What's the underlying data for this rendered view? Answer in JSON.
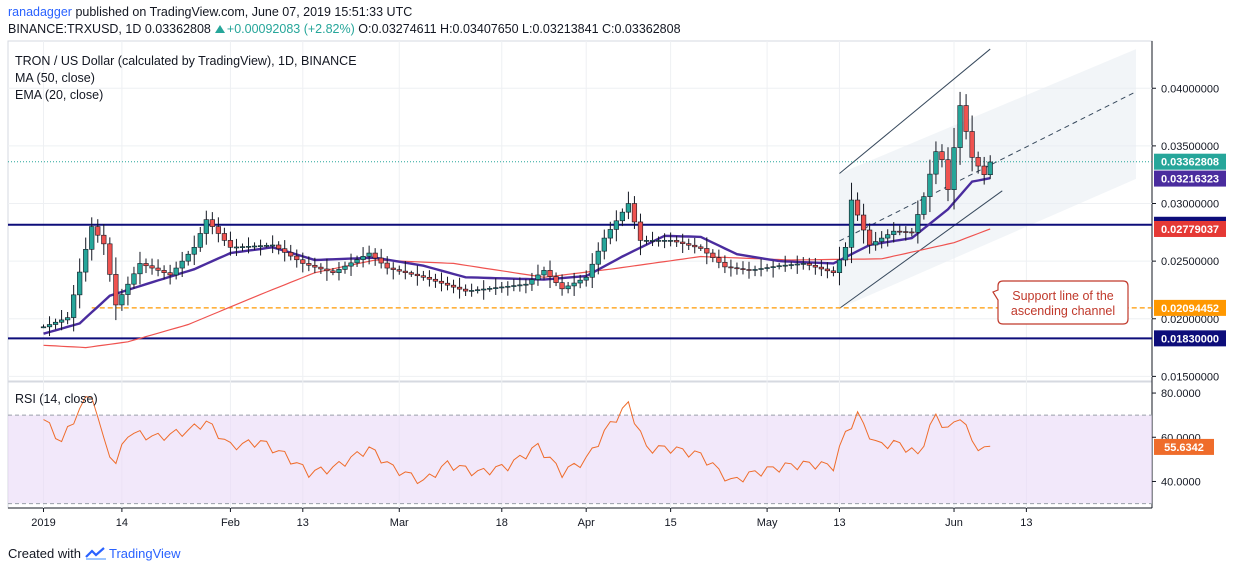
{
  "header": {
    "user": "ranadagger",
    "published_text": "published on TradingView.com, June 07, 2019 15:51:33 UTC",
    "symbol_line_prefix": "BINANCE:TRXUSD, 1D",
    "last_price": "0.03362808",
    "change": "+0.00092083 (+2.82%)",
    "ohlc": "O:0.03274611 H:0.03407650 L:0.03213841 C:0.03362808"
  },
  "legend": {
    "title": "TRON / US Dollar (calculated by TradingView), 1D, BINANCE",
    "ma": "MA (50, close)",
    "ema": "EMA (20, close)",
    "rsi": "RSI (14, close)"
  },
  "annotation": {
    "line1": "Support line of the",
    "line2": "ascending channel"
  },
  "footer": {
    "created_with": "Created with",
    "brand": "TradingView"
  },
  "colors": {
    "up": "#26a69a",
    "down": "#ef5350",
    "ma": "#ef5350",
    "ema": "#4a2c9e",
    "hline": "#0d0d7a",
    "support_dash": "#ff9800",
    "channel": "#37495d",
    "rsi_line": "#ef6c2b",
    "rsi_band": "#e9d9f6",
    "annotation": "#c0392b",
    "label_red": "#e53935"
  },
  "chart_data": {
    "type": "candlestick",
    "title": "TRON / US Dollar (calculated by TradingView), 1D, BINANCE",
    "price_axis": {
      "ticks": [
        "0.04000000",
        "0.03500000",
        "0.03000000",
        "0.02500000",
        "0.02000000",
        "0.01500000"
      ],
      "ylim": [
        0.0146,
        0.0441
      ]
    },
    "time_axis": {
      "ticks": [
        "2019",
        "14",
        "Feb",
        "13",
        "Mar",
        "18",
        "Apr",
        "15",
        "May",
        "13",
        "Jun",
        "13"
      ],
      "x_dates": [
        "2019-01-01",
        "2019-01-14",
        "2019-02-01",
        "2019-02-13",
        "2019-03-01",
        "2019-03-18",
        "2019-04-01",
        "2019-04-15",
        "2019-05-01",
        "2019-05-13",
        "2019-06-01",
        "2019-06-13"
      ]
    },
    "price_labels": [
      {
        "value": 0.03362808,
        "text": "0.03362808",
        "color": "#26a69a"
      },
      {
        "value": 0.03216323,
        "text": "0.03216323",
        "color": "#4a2c9e"
      },
      {
        "value": 0.02815521,
        "text": "0.02815521",
        "color": "#0d0d7a"
      },
      {
        "value": 0.02779037,
        "text": "0.02779037",
        "color": "#e53935"
      },
      {
        "value": 0.02094452,
        "text": "0.02094452",
        "color": "#ff9800"
      },
      {
        "value": 0.0183,
        "text": "0.01830000",
        "color": "#0d0d7a"
      }
    ],
    "horizontal_lines": [
      {
        "value": 0.02815521,
        "style": "solid"
      },
      {
        "value": 0.0183,
        "style": "solid"
      },
      {
        "value": 0.02094452,
        "style": "dashed",
        "start": "2019-01-09"
      }
    ],
    "channel": {
      "lower": [
        [
          "2019-05-13",
          0.0209
        ],
        [
          "2019-06-09",
          0.0311
        ]
      ],
      "upper": [
        [
          "2019-05-13",
          0.0326
        ],
        [
          "2019-06-07",
          0.0434
        ]
      ]
    },
    "close_anchors": [
      [
        "2019-01-01",
        0.0193
      ],
      [
        "2019-01-05",
        0.0201
      ],
      [
        "2019-01-09",
        0.028
      ],
      [
        "2019-01-11",
        0.0265
      ],
      [
        "2019-01-13",
        0.0212
      ],
      [
        "2019-01-17",
        0.0248
      ],
      [
        "2019-01-22",
        0.0238
      ],
      [
        "2019-01-26",
        0.0262
      ],
      [
        "2019-01-28",
        0.0286
      ],
      [
        "2019-02-01",
        0.0262
      ],
      [
        "2019-02-08",
        0.0264
      ],
      [
        "2019-02-13",
        0.0248
      ],
      [
        "2019-02-18",
        0.024
      ],
      [
        "2019-02-24",
        0.0257
      ],
      [
        "2019-02-27",
        0.0244
      ],
      [
        "2019-03-05",
        0.0236
      ],
      [
        "2019-03-12",
        0.0224
      ],
      [
        "2019-03-22",
        0.023
      ],
      [
        "2019-03-25",
        0.0242
      ],
      [
        "2019-03-28",
        0.0226
      ],
      [
        "2019-04-01",
        0.0236
      ],
      [
        "2019-04-04",
        0.027
      ],
      [
        "2019-04-08",
        0.03
      ],
      [
        "2019-04-10",
        0.0268
      ],
      [
        "2019-04-15",
        0.0268
      ],
      [
        "2019-04-20",
        0.0261
      ],
      [
        "2019-04-24",
        0.0245
      ],
      [
        "2019-04-28",
        0.0242
      ],
      [
        "2019-05-03",
        0.0246
      ],
      [
        "2019-05-07",
        0.0248
      ],
      [
        "2019-05-12",
        0.024
      ],
      [
        "2019-05-14",
        0.0262
      ],
      [
        "2019-05-15",
        0.0303
      ],
      [
        "2019-05-18",
        0.0264
      ],
      [
        "2019-05-22",
        0.0276
      ],
      [
        "2019-05-25",
        0.0275
      ],
      [
        "2019-05-27",
        0.0306
      ],
      [
        "2019-05-29",
        0.0345
      ],
      [
        "2019-05-30",
        0.0338
      ],
      [
        "2019-05-31",
        0.0312
      ],
      [
        "2019-06-02",
        0.0385
      ],
      [
        "2019-06-04",
        0.034
      ],
      [
        "2019-06-06",
        0.0325
      ],
      [
        "2019-06-07",
        0.0336
      ]
    ],
    "ma50_anchors": [
      [
        "2019-01-01",
        0.0177
      ],
      [
        "2019-01-08",
        0.0175
      ],
      [
        "2019-01-15",
        0.018
      ],
      [
        "2019-01-25",
        0.0195
      ],
      [
        "2019-02-05",
        0.0219
      ],
      [
        "2019-02-15",
        0.024
      ],
      [
        "2019-02-25",
        0.0251
      ],
      [
        "2019-03-10",
        0.0248
      ],
      [
        "2019-03-25",
        0.0236
      ],
      [
        "2019-04-05",
        0.0243
      ],
      [
        "2019-04-20",
        0.0254
      ],
      [
        "2019-05-05",
        0.0251
      ],
      [
        "2019-05-20",
        0.0252
      ],
      [
        "2019-06-01",
        0.0266
      ],
      [
        "2019-06-07",
        0.0278
      ]
    ],
    "ema20_anchors": [
      [
        "2019-01-01",
        0.0187
      ],
      [
        "2019-01-07",
        0.0196
      ],
      [
        "2019-01-12",
        0.022
      ],
      [
        "2019-01-18",
        0.023
      ],
      [
        "2019-01-26",
        0.0243
      ],
      [
        "2019-02-01",
        0.0257
      ],
      [
        "2019-02-08",
        0.0262
      ],
      [
        "2019-02-15",
        0.0251
      ],
      [
        "2019-02-25",
        0.0253
      ],
      [
        "2019-03-05",
        0.0246
      ],
      [
        "2019-03-12",
        0.0236
      ],
      [
        "2019-03-25",
        0.0234
      ],
      [
        "2019-04-01",
        0.0237
      ],
      [
        "2019-04-07",
        0.0254
      ],
      [
        "2019-04-14",
        0.0272
      ],
      [
        "2019-04-20",
        0.0271
      ],
      [
        "2019-04-26",
        0.0256
      ],
      [
        "2019-05-03",
        0.025
      ],
      [
        "2019-05-12",
        0.0248
      ],
      [
        "2019-05-18",
        0.0264
      ],
      [
        "2019-05-25",
        0.027
      ],
      [
        "2019-05-31",
        0.0295
      ],
      [
        "2019-06-04",
        0.0319
      ],
      [
        "2019-06-07",
        0.0322
      ]
    ],
    "rsi": {
      "axis_ticks": [
        "80.0000",
        "60.0000",
        "40.0000"
      ],
      "ylim": [
        28,
        85
      ],
      "band": [
        30,
        70
      ],
      "last_label": "55.6342",
      "last_value": 55.6342,
      "anchors": [
        [
          "2019-01-01",
          68
        ],
        [
          "2019-01-04",
          58
        ],
        [
          "2019-01-07",
          73
        ],
        [
          "2019-01-09",
          80
        ],
        [
          "2019-01-11",
          58
        ],
        [
          "2019-01-13",
          48
        ],
        [
          "2019-01-15",
          62
        ],
        [
          "2019-01-20",
          60
        ],
        [
          "2019-01-25",
          63
        ],
        [
          "2019-01-28",
          67
        ],
        [
          "2019-02-01",
          56
        ],
        [
          "2019-02-06",
          58
        ],
        [
          "2019-02-10",
          52
        ],
        [
          "2019-02-14",
          44
        ],
        [
          "2019-02-18",
          46
        ],
        [
          "2019-02-24",
          55
        ],
        [
          "2019-02-28",
          46
        ],
        [
          "2019-03-05",
          40
        ],
        [
          "2019-03-09",
          48
        ],
        [
          "2019-03-14",
          44
        ],
        [
          "2019-03-19",
          47
        ],
        [
          "2019-03-24",
          56
        ],
        [
          "2019-03-28",
          44
        ],
        [
          "2019-04-01",
          50
        ],
        [
          "2019-04-05",
          66
        ],
        [
          "2019-04-08",
          75
        ],
        [
          "2019-04-11",
          55
        ],
        [
          "2019-04-15",
          55
        ],
        [
          "2019-04-20",
          52
        ],
        [
          "2019-04-25",
          40
        ],
        [
          "2019-04-29",
          44
        ],
        [
          "2019-05-04",
          47
        ],
        [
          "2019-05-08",
          48
        ],
        [
          "2019-05-12",
          47
        ],
        [
          "2019-05-14",
          62
        ],
        [
          "2019-05-16",
          70
        ],
        [
          "2019-05-19",
          57
        ],
        [
          "2019-05-23",
          57
        ],
        [
          "2019-05-26",
          52
        ],
        [
          "2019-05-29",
          70
        ],
        [
          "2019-05-31",
          63
        ],
        [
          "2019-06-02",
          70
        ],
        [
          "2019-06-04",
          58
        ],
        [
          "2019-06-06",
          54
        ],
        [
          "2019-06-07",
          55.6
        ]
      ]
    }
  }
}
